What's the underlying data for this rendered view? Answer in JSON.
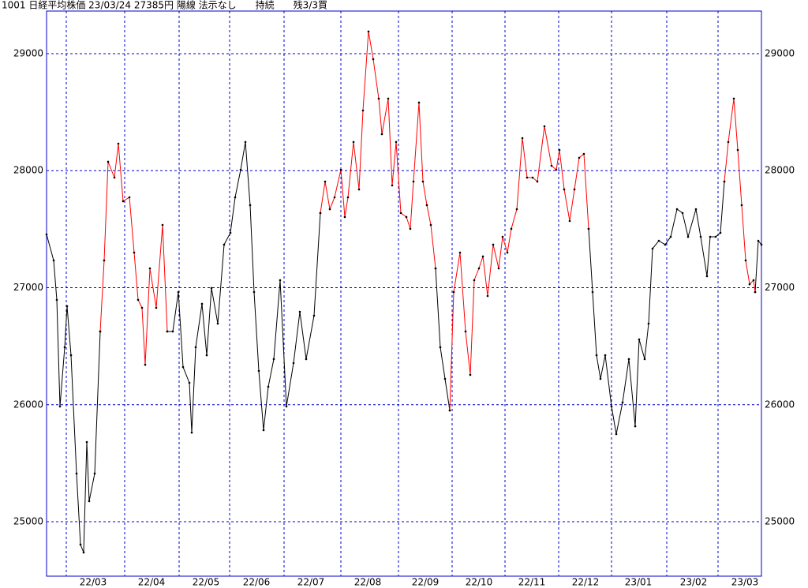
{
  "chart_data": {
    "type": "line",
    "title": "1001 日経平均株価 23/03/24 27385円 陽線 法示なし　　持続　　残3/3買",
    "x": [
      0,
      9,
      13,
      17,
      23,
      26,
      31,
      38,
      43,
      47,
      51,
      54,
      61,
      68,
      73,
      78,
      86,
      91,
      97,
      105,
      111,
      116,
      121,
      125,
      131,
      139,
      147,
      153,
      160,
      167,
      173,
      181,
      184,
      189,
      197,
      203,
      209,
      217,
      225,
      233,
      239,
      246,
      252,
      258,
      263,
      269,
      275,
      281,
      288,
      296,
      304,
      313,
      321,
      329,
      339,
      347,
      353,
      359,
      365,
      373,
      378,
      382,
      389,
      396,
      401,
      408,
      414,
      421,
      425,
      433,
      438,
      443,
      449,
      456,
      461,
      465,
      472,
      477,
      482,
      487,
      493,
      499,
      505,
      511,
      516,
      524,
      531,
      537,
      542,
      548,
      553,
      559,
      566,
      573,
      578,
      584,
      589,
      596,
      603,
      609,
      616,
      622,
      631,
      640,
      646,
      650,
      656,
      663,
      669,
      675,
      681,
      687,
      692,
      697,
      702,
      708,
      716,
      722,
      730,
      738,
      746,
      751,
      758,
      763,
      768,
      776,
      784,
      791,
      799,
      806,
      813,
      823,
      829,
      837,
      841,
      848,
      854,
      859,
      864,
      871,
      876,
      881,
      886,
      891,
      896,
      898,
      902,
      906
    ],
    "xlim": [
      0,
      906
    ],
    "xticks": [
      {
        "value": 25,
        "label": "22/03"
      },
      {
        "value": 99,
        "label": "22/04"
      },
      {
        "value": 168,
        "label": "22/05"
      },
      {
        "value": 232,
        "label": "22/06"
      },
      {
        "value": 301,
        "label": "22/07"
      },
      {
        "value": 373,
        "label": "22/08"
      },
      {
        "value": 446,
        "label": "22/09"
      },
      {
        "value": 514,
        "label": "22/10"
      },
      {
        "value": 581,
        "label": "22/11"
      },
      {
        "value": 649,
        "label": "22/12"
      },
      {
        "value": 716,
        "label": "23/01"
      },
      {
        "value": 786,
        "label": "23/02"
      },
      {
        "value": 851,
        "label": "23/03"
      }
    ],
    "ylim": [
      24535,
      29364
    ],
    "yticks": [
      25000,
      26000,
      27000,
      28000,
      29000
    ],
    "grid": true,
    "series": [
      {
        "color": "#000000",
        "values": [
          27455,
          27233,
          26896,
          25985,
          26491,
          26842,
          26423,
          25412,
          24805,
          24737,
          25681,
          25176,
          25412,
          26626,
          null,
          null,
          null,
          null,
          null,
          null,
          null,
          null,
          null,
          null,
          null,
          null,
          null,
          26626,
          26626,
          26963,
          26322,
          26187,
          25762,
          26491,
          26862,
          26423,
          26997,
          26693,
          27368,
          27469,
          27772,
          28008,
          28245,
          27705,
          26963,
          26289,
          25783,
          26154,
          26390,
          27064,
          25985,
          26356,
          26794,
          26390,
          26761,
          27638,
          null,
          null,
          null,
          null,
          null,
          null,
          null,
          null,
          null,
          null,
          null,
          null,
          null,
          null,
          null,
          null,
          null,
          null,
          null,
          null,
          null,
          null,
          null,
          null,
          27165,
          26491,
          26221,
          25951,
          null,
          null,
          null,
          null,
          null,
          null,
          null,
          null,
          null,
          null,
          null,
          null,
          null,
          null,
          null,
          null,
          null,
          null,
          null,
          null,
          null,
          null,
          null,
          null,
          null,
          null,
          null,
          27503,
          26963,
          26423,
          26221,
          26423,
          25985,
          25749,
          26019,
          26390,
          25816,
          26558,
          26390,
          26693,
          27334,
          27401,
          27368,
          27435,
          27671,
          27638,
          27435,
          27671,
          27435,
          27098,
          27435,
          27435,
          27469,
          27907,
          null,
          null,
          null,
          null,
          null,
          null,
          null,
          26963,
          27401,
          27368
        ]
      },
      {
        "color": "#ff0000",
        "values": [
          null,
          null,
          null,
          null,
          null,
          null,
          null,
          null,
          null,
          null,
          null,
          null,
          null,
          26626,
          27233,
          28076,
          27941,
          28231,
          27739,
          27772,
          27300,
          26896,
          26828,
          26342,
          27165,
          26828,
          27536,
          26626,
          null,
          null,
          null,
          null,
          null,
          null,
          null,
          null,
          null,
          null,
          null,
          null,
          null,
          null,
          null,
          null,
          null,
          null,
          null,
          null,
          null,
          null,
          null,
          null,
          null,
          null,
          null,
          27638,
          27907,
          27671,
          27772,
          28008,
          27604,
          27772,
          28245,
          27840,
          28514,
          29189,
          28953,
          28616,
          28312,
          28616,
          27874,
          28245,
          27638,
          27604,
          27503,
          27907,
          28582,
          27907,
          27705,
          27536,
          27165,
          null,
          null,
          25951,
          26963,
          27300,
          26626,
          26255,
          27064,
          27165,
          27267,
          26929,
          27368,
          27165,
          27435,
          27300,
          27503,
          27671,
          28278,
          27941,
          27941,
          27907,
          28379,
          28042,
          28008,
          28177,
          27840,
          27570,
          27840,
          28110,
          28143,
          27503,
          null,
          null,
          null,
          null,
          null,
          null,
          null,
          null,
          null,
          null,
          null,
          null,
          null,
          null,
          null,
          null,
          null,
          null,
          null,
          null,
          null,
          null,
          null,
          null,
          null,
          27907,
          28245,
          28616,
          28177,
          27705,
          27233,
          27030,
          27064,
          26963,
          null,
          null
        ]
      }
    ]
  }
}
